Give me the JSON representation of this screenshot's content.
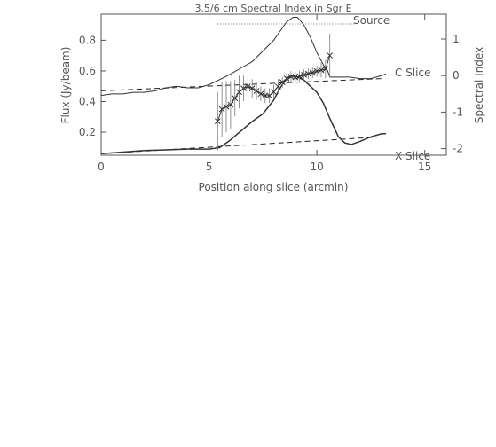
{
  "chart_data": {
    "type": "line",
    "title": "3.5/6 cm Spectral Index in Sgr E",
    "xlabel": "Position along slice (arcmin)",
    "ylabel": "Flux (Jy/beam)",
    "y2label": "Spectral Index",
    "xlim": [
      0,
      16
    ],
    "ylim": [
      0.05,
      0.97
    ],
    "y2lim": [
      -2.18,
      1.68
    ],
    "x_ticks": [
      0,
      5,
      10,
      15
    ],
    "y_ticks": [
      0.2,
      0.4,
      0.6,
      0.8
    ],
    "y2_ticks": [
      -2,
      -1,
      0,
      1
    ],
    "grid": false,
    "annotations": {
      "source": "Source",
      "c_slice": "C Slice",
      "x_slice": "X Slice"
    },
    "source_span": [
      5.4,
      11.8
    ],
    "series": [
      {
        "name": "C Slice",
        "style": "solid-thin",
        "x": [
          0,
          0.5,
          1,
          1.5,
          2,
          2.5,
          3,
          3.5,
          4,
          4.5,
          5,
          5.3,
          5.6,
          6,
          6.5,
          7,
          7.5,
          8,
          8.3,
          8.6,
          8.9,
          9.1,
          9.4,
          9.7,
          10,
          10.3,
          10.5,
          10.6,
          11,
          11.5,
          12,
          12.5,
          13,
          13.2
        ],
        "values": [
          0.44,
          0.45,
          0.45,
          0.46,
          0.46,
          0.47,
          0.49,
          0.5,
          0.49,
          0.49,
          0.51,
          0.53,
          0.55,
          0.58,
          0.62,
          0.66,
          0.73,
          0.8,
          0.86,
          0.92,
          0.95,
          0.95,
          0.9,
          0.82,
          0.72,
          0.64,
          0.6,
          0.56,
          0.56,
          0.56,
          0.55,
          0.55,
          0.57,
          0.58
        ]
      },
      {
        "name": "X Slice",
        "style": "solid-thick",
        "x": [
          0,
          1,
          2,
          3,
          4,
          5,
          5.5,
          6,
          6.5,
          7,
          7.5,
          8,
          8.3,
          8.6,
          8.9,
          9.1,
          9.4,
          9.7,
          10,
          10.3,
          10.6,
          11,
          11.3,
          11.6,
          12,
          12.5,
          13,
          13.2
        ],
        "values": [
          0.06,
          0.07,
          0.08,
          0.085,
          0.09,
          0.09,
          0.1,
          0.15,
          0.21,
          0.27,
          0.32,
          0.41,
          0.49,
          0.55,
          0.57,
          0.56,
          0.54,
          0.5,
          0.46,
          0.39,
          0.29,
          0.17,
          0.13,
          0.12,
          0.14,
          0.17,
          0.19,
          0.19
        ]
      },
      {
        "name": "C Slice baseline",
        "style": "dashed",
        "x": [
          0,
          13
        ],
        "values": [
          0.47,
          0.55
        ]
      },
      {
        "name": "X Slice baseline",
        "style": "dashed",
        "x": [
          0,
          13
        ],
        "values": [
          0.06,
          0.17
        ]
      }
    ],
    "spectral_index": {
      "axis": "right",
      "style": "solid-with-x-markers-and-errorbars",
      "x": [
        5.4,
        5.6,
        5.8,
        6.0,
        6.2,
        6.4,
        6.6,
        6.8,
        7.0,
        7.2,
        7.4,
        7.6,
        7.8,
        8.0,
        8.2,
        8.4,
        8.6,
        8.8,
        9.0,
        9.2,
        9.4,
        9.6,
        9.8,
        10.0,
        10.2,
        10.4,
        10.6
      ],
      "values": [
        -1.25,
        -0.92,
        -0.85,
        -0.8,
        -0.62,
        -0.45,
        -0.35,
        -0.3,
        -0.35,
        -0.42,
        -0.5,
        -0.55,
        -0.55,
        -0.45,
        -0.3,
        -0.18,
        -0.08,
        -0.03,
        -0.05,
        -0.02,
        0.02,
        0.05,
        0.08,
        0.12,
        0.15,
        0.18,
        0.55
      ],
      "errors": [
        0.8,
        0.75,
        0.7,
        0.65,
        0.5,
        0.45,
        0.35,
        0.3,
        0.25,
        0.25,
        0.2,
        0.2,
        0.2,
        0.2,
        0.2,
        0.15,
        0.15,
        0.15,
        0.15,
        0.15,
        0.15,
        0.15,
        0.15,
        0.15,
        0.2,
        0.25,
        0.6
      ]
    }
  }
}
